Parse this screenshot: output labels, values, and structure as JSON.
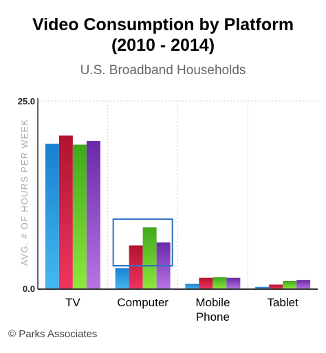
{
  "title_line1": "Video Consumption by Platform",
  "title_line2": "(2010 - 2014)",
  "subtitle": "U.S. Broadband Households",
  "credit": "© Parks Associates",
  "colors": {
    "series": [
      [
        "#1a7fd0",
        "#46b8f0"
      ],
      [
        "#b1132f",
        "#f0345f"
      ],
      [
        "#3fa81c",
        "#8ee83d"
      ],
      [
        "#6a2aa8",
        "#b774e4"
      ]
    ],
    "highlight": "#2a72c2",
    "grid": "#cccccc",
    "axis": "#333333"
  },
  "chart_data": {
    "type": "bar",
    "ylabel": "AVG. # OF HOURS PER WEEK",
    "ylim": [
      0,
      25
    ],
    "yticks": [
      "25.0",
      "0.0"
    ],
    "categories": [
      [
        "TV"
      ],
      [
        "Computer"
      ],
      [
        "Mobile",
        "Phone"
      ],
      [
        "Tablet"
      ]
    ],
    "series": [
      {
        "values": [
          19.3,
          2.8,
          0.7,
          0.3
        ]
      },
      {
        "values": [
          20.4,
          5.8,
          1.5,
          0.6
        ]
      },
      {
        "values": [
          19.2,
          8.2,
          1.6,
          1.1
        ]
      },
      {
        "values": [
          19.7,
          6.2,
          1.5,
          1.2
        ]
      }
    ],
    "highlight_category": "Computer",
    "grid": true
  }
}
